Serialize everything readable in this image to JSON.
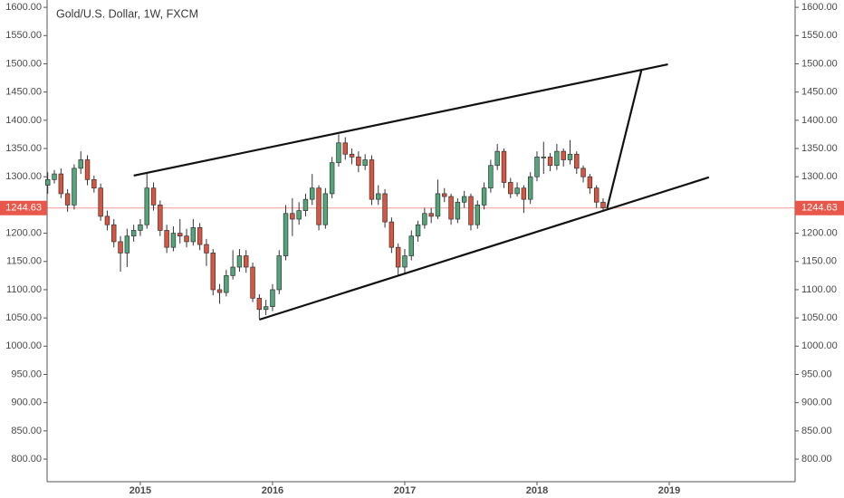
{
  "chart_data": {
    "type": "candlestick",
    "title": "Gold/U.S. Dollar, 1W, FXCM",
    "x": [
      2014.3,
      2014.35,
      2014.4,
      2014.45,
      2014.5,
      2014.55,
      2014.6,
      2014.65,
      2014.7,
      2014.75,
      2014.8,
      2014.85,
      2014.9,
      2014.95,
      2015.0,
      2015.05,
      2015.1,
      2015.15,
      2015.2,
      2015.25,
      2015.3,
      2015.35,
      2015.4,
      2015.45,
      2015.5,
      2015.55,
      2015.6,
      2015.65,
      2015.7,
      2015.75,
      2015.8,
      2015.85,
      2015.9,
      2015.95,
      2016.0,
      2016.05,
      2016.1,
      2016.15,
      2016.2,
      2016.25,
      2016.3,
      2016.35,
      2016.4,
      2016.45,
      2016.5,
      2016.55,
      2016.6,
      2016.65,
      2016.7,
      2016.75,
      2016.8,
      2016.85,
      2016.9,
      2016.95,
      2017.0,
      2017.05,
      2017.1,
      2017.15,
      2017.2,
      2017.25,
      2017.3,
      2017.35,
      2017.4,
      2017.45,
      2017.5,
      2017.55,
      2017.6,
      2017.65,
      2017.7,
      2017.75,
      2017.8,
      2017.85,
      2017.9,
      2017.95,
      2018.0,
      2018.05,
      2018.1,
      2018.15,
      2018.2,
      2018.25,
      2018.3,
      2018.35,
      2018.4,
      2018.45,
      2018.5
    ],
    "open": [
      1285,
      1295,
      1305,
      1270,
      1250,
      1315,
      1330,
      1295,
      1280,
      1230,
      1215,
      1185,
      1165,
      1195,
      1205,
      1215,
      1280,
      1250,
      1205,
      1175,
      1200,
      1195,
      1185,
      1210,
      1180,
      1165,
      1100,
      1095,
      1125,
      1140,
      1160,
      1140,
      1085,
      1065,
      1070,
      1100,
      1160,
      1235,
      1225,
      1240,
      1260,
      1280,
      1215,
      1270,
      1325,
      1360,
      1340,
      1335,
      1320,
      1330,
      1260,
      1270,
      1220,
      1175,
      1140,
      1160,
      1195,
      1215,
      1235,
      1230,
      1270,
      1265,
      1225,
      1255,
      1265,
      1215,
      1250,
      1280,
      1320,
      1345,
      1290,
      1270,
      1280,
      1260,
      1300,
      1335,
      1335,
      1320,
      1345,
      1330,
      1340,
      1315,
      1300,
      1280,
      1255
    ],
    "high": [
      1308,
      1312,
      1315,
      1278,
      1322,
      1345,
      1338,
      1302,
      1288,
      1240,
      1225,
      1195,
      1208,
      1215,
      1225,
      1305,
      1290,
      1258,
      1215,
      1212,
      1225,
      1208,
      1225,
      1218,
      1190,
      1172,
      1110,
      1135,
      1170,
      1172,
      1170,
      1148,
      1092,
      1082,
      1110,
      1170,
      1250,
      1262,
      1255,
      1270,
      1305,
      1285,
      1280,
      1335,
      1375,
      1370,
      1350,
      1345,
      1340,
      1338,
      1285,
      1278,
      1228,
      1182,
      1172,
      1205,
      1222,
      1245,
      1245,
      1295,
      1280,
      1270,
      1262,
      1275,
      1270,
      1258,
      1290,
      1330,
      1358,
      1350,
      1298,
      1290,
      1285,
      1308,
      1345,
      1362,
      1342,
      1358,
      1350,
      1365,
      1345,
      1320,
      1305,
      1285,
      1262
    ],
    "low": [
      1270,
      1288,
      1262,
      1238,
      1242,
      1305,
      1285,
      1272,
      1222,
      1205,
      1175,
      1132,
      1140,
      1185,
      1195,
      1208,
      1240,
      1195,
      1165,
      1168,
      1182,
      1175,
      1178,
      1170,
      1142,
      1090,
      1075,
      1088,
      1118,
      1132,
      1130,
      1078,
      1048,
      1055,
      1062,
      1092,
      1152,
      1195,
      1215,
      1230,
      1250,
      1205,
      1208,
      1262,
      1318,
      1330,
      1322,
      1308,
      1312,
      1250,
      1250,
      1210,
      1165,
      1125,
      1130,
      1152,
      1185,
      1208,
      1218,
      1225,
      1255,
      1215,
      1218,
      1245,
      1205,
      1208,
      1242,
      1272,
      1312,
      1280,
      1262,
      1265,
      1236,
      1252,
      1292,
      1305,
      1310,
      1312,
      1318,
      1322,
      1305,
      1290,
      1270,
      1245,
      1238
    ],
    "close": [
      1295,
      1305,
      1270,
      1250,
      1315,
      1330,
      1295,
      1280,
      1230,
      1215,
      1185,
      1165,
      1195,
      1205,
      1215,
      1280,
      1250,
      1205,
      1175,
      1200,
      1195,
      1185,
      1210,
      1180,
      1165,
      1100,
      1095,
      1125,
      1140,
      1160,
      1140,
      1085,
      1065,
      1070,
      1100,
      1160,
      1235,
      1225,
      1240,
      1260,
      1280,
      1215,
      1270,
      1325,
      1360,
      1340,
      1335,
      1320,
      1330,
      1260,
      1270,
      1220,
      1175,
      1140,
      1160,
      1195,
      1215,
      1235,
      1230,
      1270,
      1265,
      1225,
      1255,
      1265,
      1215,
      1250,
      1280,
      1320,
      1345,
      1290,
      1270,
      1280,
      1260,
      1300,
      1335,
      1335,
      1320,
      1345,
      1330,
      1340,
      1315,
      1300,
      1280,
      1255,
      1245
    ],
    "up_color": "#53a57a",
    "down_color": "#d9553f",
    "current_price": 1244.63,
    "current_price_color": "#e8574a",
    "trend_lines": [
      {
        "x": [
          2014.95,
          2018.99
        ],
        "y": [
          1302,
          1499
        ]
      },
      {
        "x": [
          2015.9,
          2019.3
        ],
        "y": [
          1047,
          1299
        ]
      },
      {
        "x": [
          2018.53,
          2018.79
        ],
        "y": [
          1244,
          1489
        ]
      }
    ],
    "xlim": [
      2014.295,
      2019.952
    ],
    "ylim": [
      760,
      1613
    ],
    "xticks": [
      2015,
      2016,
      2017,
      2018,
      2019
    ],
    "yticks": [
      {
        "value": 800,
        "label": "800.00"
      },
      {
        "value": 850,
        "label": "850.00"
      },
      {
        "value": 900,
        "label": "900.00"
      },
      {
        "value": 950,
        "label": "950.00"
      },
      {
        "value": 1000,
        "label": "1000.00"
      },
      {
        "value": 1050,
        "label": "1050.00"
      },
      {
        "value": 1100,
        "label": "1100.00"
      },
      {
        "value": 1150,
        "label": "1150.00"
      },
      {
        "value": 1200,
        "label": "1200.00"
      },
      {
        "value": 1250,
        "label": "1250.00"
      },
      {
        "value": 1300,
        "label": "1300.00"
      },
      {
        "value": 1350,
        "label": "1350.00"
      },
      {
        "value": 1400,
        "label": "1400.00"
      },
      {
        "value": 1450,
        "label": "1450.00"
      },
      {
        "value": 1500,
        "label": "1500.00"
      },
      {
        "value": 1550,
        "label": "1550.00"
      },
      {
        "value": 1600,
        "label": "1600.00"
      }
    ]
  }
}
